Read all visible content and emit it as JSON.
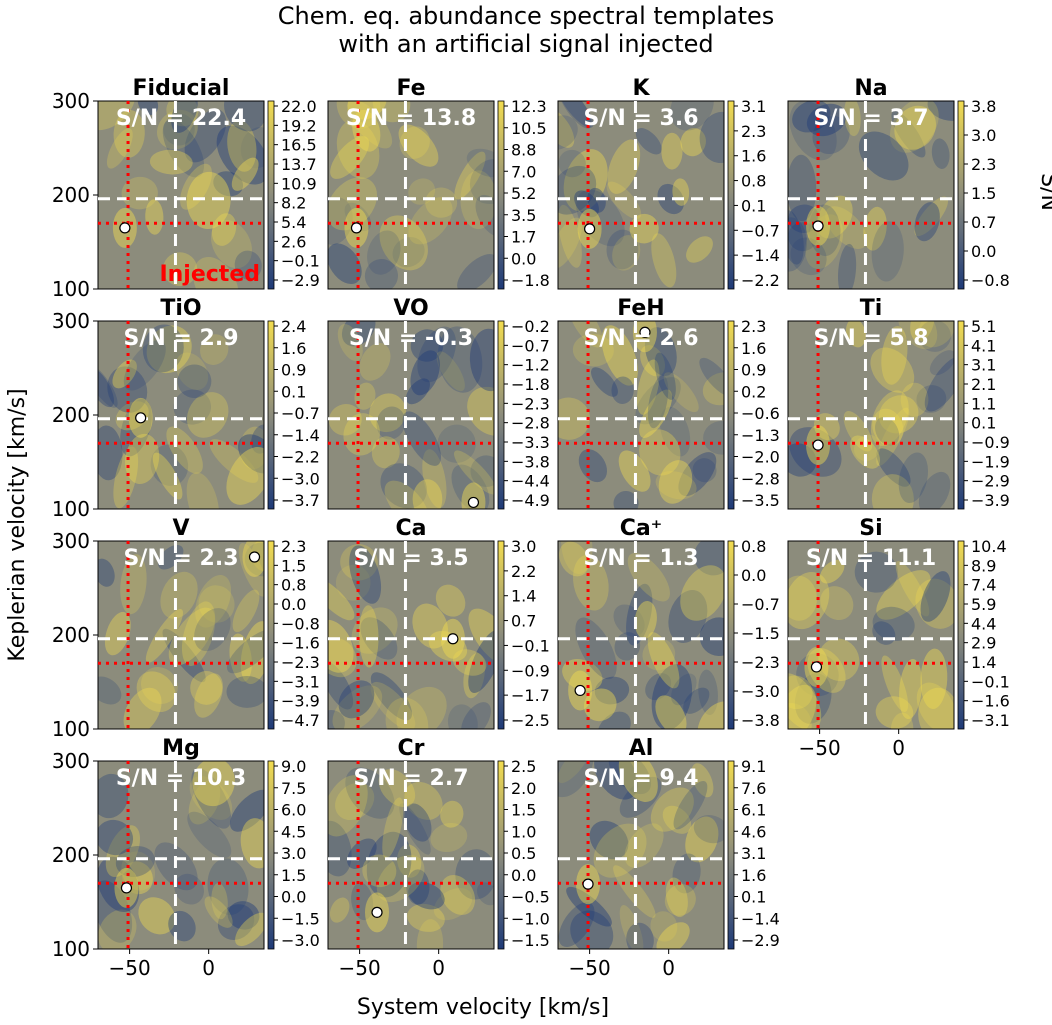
{
  "title_line1": "Chem. eq. abundance spectral templates",
  "title_line2": "with an artificial signal injected",
  "injected_label": "Injected",
  "colors": {
    "low": "#1e3a78",
    "mid": "#8c8c7c",
    "high": "#f2dc50",
    "guide": "#ffffff",
    "injected": "#ff0000"
  },
  "chart_data": {
    "type": "heatmap",
    "xlabel": "System velocity [km/s]",
    "ylabel": "Keplerian velocity [km/s]",
    "colorbar_label": "S/N",
    "xlim": [
      -70,
      35
    ],
    "ylim": [
      100,
      300
    ],
    "x_ticks": [
      "−50",
      "0"
    ],
    "y_ticks": [
      "100",
      "200",
      "300"
    ],
    "guide_lines": {
      "vsys": -21,
      "kp": 196
    },
    "injected_signal": {
      "vsys": -51,
      "kp": 170
    },
    "panels": [
      {
        "name": "Fiducial",
        "sn_label": "S/N = 22.4",
        "peak": {
          "vsys": -53,
          "kp": 165
        },
        "cbar_ticks": [
          "22.0",
          "19.2",
          "16.5",
          "13.7",
          "10.9",
          "8.2",
          "5.4",
          "2.6",
          "−0.1",
          "−2.9"
        ],
        "injected_text": true
      },
      {
        "name": "Fe",
        "sn_label": "S/N = 13.8",
        "peak": {
          "vsys": -52,
          "kp": 165
        },
        "cbar_ticks": [
          "12.3",
          "10.5",
          "8.8",
          "7.0",
          "5.2",
          "3.5",
          "1.7",
          "0.0",
          "−1.8"
        ]
      },
      {
        "name": "K",
        "sn_label": "S/N = 3.6",
        "peak": {
          "vsys": -50,
          "kp": 164
        },
        "cbar_ticks": [
          "3.1",
          "2.3",
          "1.6",
          "0.8",
          "0.1",
          "−0.7",
          "−1.4",
          "−2.2"
        ]
      },
      {
        "name": "Na",
        "sn_label": "S/N = 3.7",
        "peak": {
          "vsys": -51,
          "kp": 167
        },
        "cbar_ticks": [
          "3.8",
          "3.0",
          "2.3",
          "1.5",
          "0.7",
          "0.0",
          "−0.8"
        ]
      },
      {
        "name": "TiO",
        "sn_label": "S/N = 2.9",
        "peak": {
          "vsys": -43,
          "kp": 197
        },
        "cbar_ticks": [
          "2.4",
          "1.6",
          "0.9",
          "0.1",
          "−0.7",
          "−1.4",
          "−2.2",
          "−3.0",
          "−3.7"
        ]
      },
      {
        "name": "VO",
        "sn_label": "S/N = -0.3",
        "peak": {
          "vsys": 22,
          "kp": 107
        },
        "cbar_ticks": [
          "−0.2",
          "−0.7",
          "−1.2",
          "−1.8",
          "−2.3",
          "−2.8",
          "−3.3",
          "−3.8",
          "−4.4",
          "−4.9"
        ]
      },
      {
        "name": "FeH",
        "sn_label": "S/N = 2.6",
        "peak": {
          "vsys": -15,
          "kp": 288
        },
        "cbar_ticks": [
          "2.3",
          "1.6",
          "0.9",
          "0.2",
          "−0.6",
          "−1.3",
          "−2.0",
          "−2.8",
          "−3.5"
        ]
      },
      {
        "name": "Ti",
        "sn_label": "S/N = 5.8",
        "peak": {
          "vsys": -51,
          "kp": 168
        },
        "cbar_ticks": [
          "5.1",
          "4.1",
          "3.1",
          "2.1",
          "1.1",
          "0.1",
          "−0.9",
          "−1.9",
          "−2.9",
          "−3.9"
        ]
      },
      {
        "name": "V",
        "sn_label": "S/N = 2.3",
        "peak": {
          "vsys": 29,
          "kp": 283
        },
        "cbar_ticks": [
          "2.3",
          "1.5",
          "0.8",
          "0.0",
          "−0.8",
          "−1.6",
          "−2.3",
          "−3.1",
          "−3.9",
          "−4.7"
        ]
      },
      {
        "name": "Ca",
        "sn_label": "S/N = 3.5",
        "peak": {
          "vsys": 9,
          "kp": 196
        },
        "cbar_ticks": [
          "3.0",
          "2.2",
          "1.4",
          "0.7",
          "−0.1",
          "−0.9",
          "−1.7",
          "−2.5"
        ]
      },
      {
        "name": "Ca⁺",
        "sn_label": "S/N = 1.3",
        "peak": {
          "vsys": -56,
          "kp": 141
        },
        "cbar_ticks": [
          "0.8",
          "0.0",
          "−0.7",
          "−1.5",
          "−2.3",
          "−3.0",
          "−3.8"
        ]
      },
      {
        "name": "Si",
        "sn_label": "S/N = 11.1",
        "peak": {
          "vsys": -52,
          "kp": 166
        },
        "cbar_ticks": [
          "10.4",
          "8.9",
          "7.4",
          "5.9",
          "4.4",
          "2.9",
          "1.4",
          "−0.1",
          "−1.6",
          "−3.1"
        ]
      },
      {
        "name": "Mg",
        "sn_label": "S/N = 10.3",
        "peak": {
          "vsys": -52,
          "kp": 165
        },
        "cbar_ticks": [
          "9.0",
          "7.5",
          "6.0",
          "4.5",
          "3.0",
          "1.5",
          "0.0",
          "−1.5",
          "−3.0"
        ]
      },
      {
        "name": "Cr",
        "sn_label": "S/N = 2.7",
        "peak": {
          "vsys": -39,
          "kp": 139
        },
        "cbar_ticks": [
          "2.5",
          "2.0",
          "1.5",
          "1.0",
          "0.5",
          "0.0",
          "−0.5",
          "−1.0",
          "−1.5"
        ]
      },
      {
        "name": "Al",
        "sn_label": "S/N = 9.4",
        "peak": {
          "vsys": -51,
          "kp": 169
        },
        "cbar_ticks": [
          "9.1",
          "7.6",
          "6.1",
          "4.6",
          "3.1",
          "1.6",
          "0.1",
          "−1.4",
          "−2.9"
        ]
      }
    ]
  }
}
